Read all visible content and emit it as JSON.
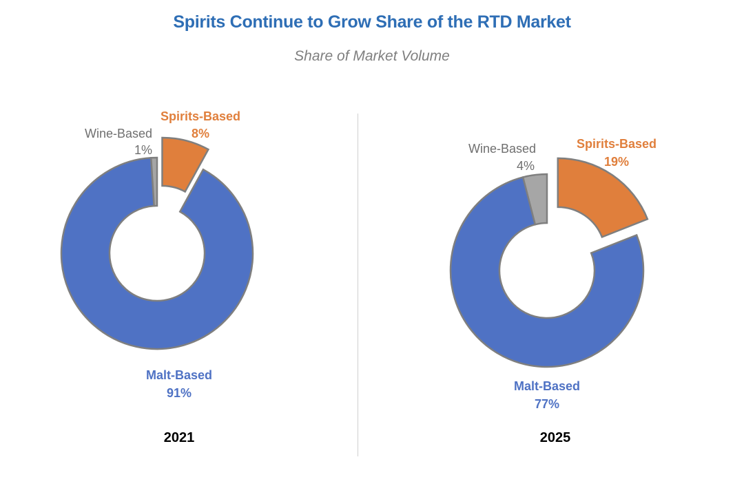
{
  "title": "Spirits Continue to Grow Share of the RTD Market",
  "subtitle": "Share of Market Volume",
  "colors": {
    "title": "#2e6eb5",
    "malt": "#4f72c4",
    "spirits": "#e07f3c",
    "wine": "#a6a6a6",
    "edge": "#7f7f7f",
    "wine_label": "#6f6f6f"
  },
  "chart_data": [
    {
      "type": "pie",
      "variant": "donut",
      "year": "2021",
      "slices": [
        {
          "name": "Spirits-Based",
          "value": 8,
          "label": "8%",
          "exploded": true
        },
        {
          "name": "Malt-Based",
          "value": 91,
          "label": "91%",
          "exploded": false
        },
        {
          "name": "Wine-Based",
          "value": 1,
          "label": "1%",
          "exploded": false
        }
      ]
    },
    {
      "type": "pie",
      "variant": "donut",
      "year": "2025",
      "slices": [
        {
          "name": "Spirits-Based",
          "value": 19,
          "label": "19%",
          "exploded": true
        },
        {
          "name": "Malt-Based",
          "value": 77,
          "label": "77%",
          "exploded": false
        },
        {
          "name": "Wine-Based",
          "value": 4,
          "label": "4%",
          "exploded": false
        }
      ]
    }
  ]
}
